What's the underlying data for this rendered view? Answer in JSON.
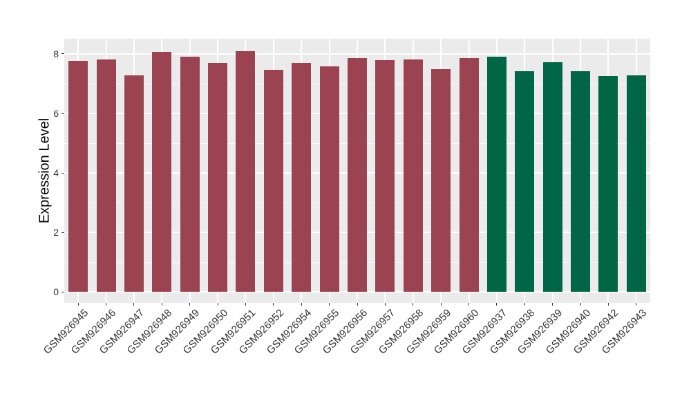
{
  "chart_data": {
    "type": "bar",
    "title": "",
    "xlabel": "",
    "ylabel": "Expression Level",
    "categories": [
      "GSM926945",
      "GSM926946",
      "GSM926947",
      "GSM926948",
      "GSM926949",
      "GSM926950",
      "GSM926951",
      "GSM926952",
      "GSM926954",
      "GSM926955",
      "GSM926956",
      "GSM926957",
      "GSM926958",
      "GSM926959",
      "GSM926960",
      "GSM926937",
      "GSM926938",
      "GSM926939",
      "GSM926940",
      "GSM926942",
      "GSM926943"
    ],
    "values": [
      7.76,
      7.82,
      7.28,
      8.07,
      7.91,
      7.7,
      8.09,
      7.46,
      7.7,
      7.59,
      7.85,
      7.78,
      7.81,
      7.49,
      7.87,
      7.9,
      7.43,
      7.73,
      7.43,
      7.25,
      7.28
    ],
    "bar_groups": [
      "maroon",
      "maroon",
      "maroon",
      "maroon",
      "maroon",
      "maroon",
      "maroon",
      "maroon",
      "maroon",
      "maroon",
      "maroon",
      "maroon",
      "maroon",
      "maroon",
      "maroon",
      "green",
      "green",
      "green",
      "green",
      "green",
      "green"
    ],
    "palette": {
      "maroon": "#9B4351",
      "green": "#006646"
    },
    "ylim": [
      -0.36,
      8.51
    ],
    "yticks": [
      0,
      2,
      4,
      6,
      8
    ],
    "yticks_minor": [
      1,
      3,
      5,
      7
    ],
    "x_tick_angle": 45,
    "grid": true,
    "legend": false,
    "panel_background": "#EBEBEB",
    "grid_color": "#FFFFFF",
    "tick_color": "#333333"
  }
}
